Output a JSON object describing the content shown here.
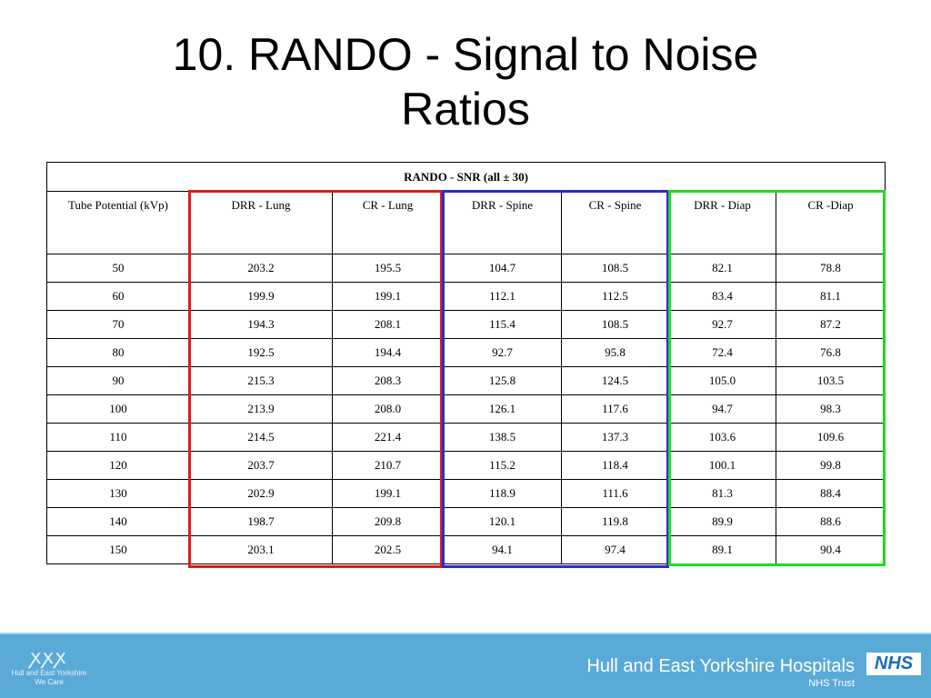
{
  "slide": {
    "title_line1": "10. RANDO -  Signal to Noise",
    "title_line2": "Ratios"
  },
  "table": {
    "caption": "RANDO - SNR (all ± 30)",
    "headers": [
      "Tube Potential (kVp)",
      "DRR - Lung",
      "CR - Lung",
      "DRR - Spine",
      "CR - Spine",
      "DRR - Diap",
      "CR -Diap"
    ],
    "rows": [
      [
        "50",
        "203.2",
        "195.5",
        "104.7",
        "108.5",
        "82.1",
        "78.8"
      ],
      [
        "60",
        "199.9",
        "199.1",
        "112.1",
        "112.5",
        "83.4",
        "81.1"
      ],
      [
        "70",
        "194.3",
        "208.1",
        "115.4",
        "108.5",
        "92.7",
        "87.2"
      ],
      [
        "80",
        "192.5",
        "194.4",
        "92.7",
        "95.8",
        "72.4",
        "76.8"
      ],
      [
        "90",
        "215.3",
        "208.3",
        "125.8",
        "124.5",
        "105.0",
        "103.5"
      ],
      [
        "100",
        "213.9",
        "208.0",
        "126.1",
        "117.6",
        "94.7",
        "98.3"
      ],
      [
        "110",
        "214.5",
        "221.4",
        "138.5",
        "137.3",
        "103.6",
        "109.6"
      ],
      [
        "120",
        "203.7",
        "210.7",
        "115.2",
        "118.4",
        "100.1",
        "99.8"
      ],
      [
        "130",
        "202.9",
        "199.1",
        "118.9",
        "111.6",
        "81.3",
        "88.4"
      ],
      [
        "140",
        "198.7",
        "209.8",
        "120.1",
        "119.8",
        "89.9",
        "88.6"
      ],
      [
        "150",
        "203.1",
        "202.5",
        "94.1",
        "97.4",
        "89.1",
        "90.4"
      ]
    ],
    "highlight_colors": {
      "lung": "#e01b1b",
      "spine": "#2b2bd6",
      "diap": "#1fdc1f"
    }
  },
  "footer": {
    "logo_text": "Hull and East Yorkshire",
    "logo_subtext": "We Care",
    "organisation": "Hull and East Yorkshire Hospitals",
    "trust": "NHS Trust",
    "badge": "NHS",
    "background_color": "#5aaad8"
  }
}
